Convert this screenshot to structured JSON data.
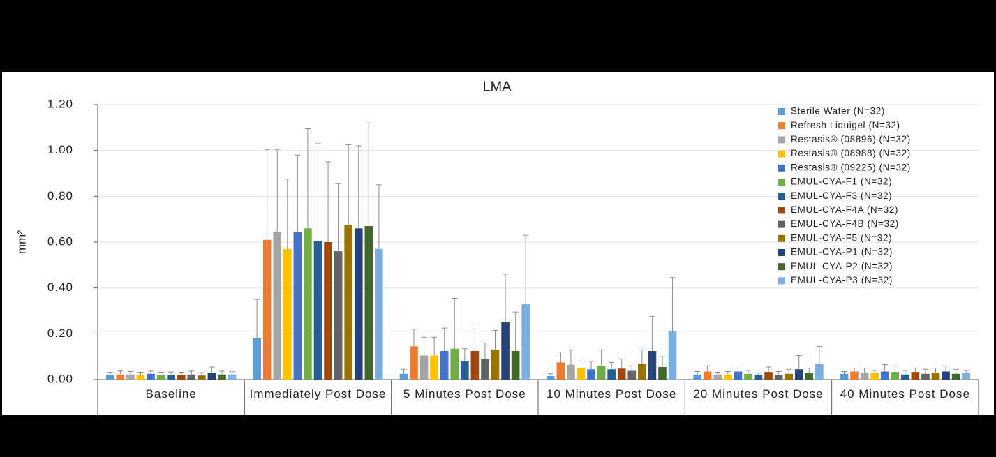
{
  "chart_data": {
    "type": "bar",
    "title": "LMA",
    "y_label": "mm²",
    "categories": [
      "Baseline",
      "Immediately Post Dose",
      "5 Minutes Post Dose",
      "10 Minutes Post Dose",
      "20 Minutes Post Dose",
      "40 Minutes Post Dose"
    ],
    "ylim": [
      0,
      1.2
    ],
    "yticks": [
      {
        "value": 0,
        "label": "0.00"
      },
      {
        "value": 0.2,
        "label": "0.20"
      },
      {
        "value": 0.4,
        "label": "0.40"
      },
      {
        "value": 0.6,
        "label": "0.60"
      },
      {
        "value": 0.8,
        "label": "0.80"
      },
      {
        "value": 1.0,
        "label": "1.00"
      },
      {
        "value": 1.2,
        "label": "1.20"
      }
    ],
    "grid": true,
    "legend": "top-right",
    "series": [
      {
        "name": "Sterile Water (N=32)",
        "color": "#5b9bd5",
        "values": [
          0.02,
          0.18,
          0.025,
          0.015,
          0.022,
          0.025
        ],
        "errors": [
          0.012,
          0.17,
          0.02,
          0.01,
          0.013,
          0.01
        ]
      },
      {
        "name": "Refresh Liquigel (N=32)",
        "color": "#ed7d31",
        "values": [
          0.022,
          0.61,
          0.145,
          0.075,
          0.035,
          0.035
        ],
        "errors": [
          0.015,
          0.395,
          0.075,
          0.045,
          0.025,
          0.015
        ]
      },
      {
        "name": "Restasis® (08896) (N=32)",
        "color": "#a5a5a5",
        "values": [
          0.022,
          0.645,
          0.105,
          0.065,
          0.022,
          0.03
        ],
        "errors": [
          0.013,
          0.36,
          0.08,
          0.065,
          0.01,
          0.02
        ]
      },
      {
        "name": "Restasis® (08988) (N=32)",
        "color": "#ffc000",
        "values": [
          0.02,
          0.57,
          0.105,
          0.05,
          0.022,
          0.028
        ],
        "errors": [
          0.012,
          0.305,
          0.08,
          0.04,
          0.013,
          0.012
        ]
      },
      {
        "name": "Restasis® (09225) (N=32)",
        "color": "#4472c4",
        "values": [
          0.025,
          0.645,
          0.125,
          0.045,
          0.035,
          0.035
        ],
        "errors": [
          0.012,
          0.335,
          0.1,
          0.035,
          0.015,
          0.03
        ]
      },
      {
        "name": "EMUL-CYA-F1 (N=32)",
        "color": "#70ad47",
        "values": [
          0.02,
          0.66,
          0.135,
          0.06,
          0.025,
          0.033
        ],
        "errors": [
          0.012,
          0.435,
          0.22,
          0.07,
          0.015,
          0.027
        ]
      },
      {
        "name": "EMUL-CYA-F3 (N=32)",
        "color": "#255e91",
        "values": [
          0.02,
          0.605,
          0.08,
          0.045,
          0.02,
          0.022
        ],
        "errors": [
          0.013,
          0.425,
          0.055,
          0.03,
          0.008,
          0.018
        ]
      },
      {
        "name": "EMUL-CYA-F4A (N=32)",
        "color": "#9e480e",
        "values": [
          0.02,
          0.6,
          0.125,
          0.048,
          0.033,
          0.033
        ],
        "errors": [
          0.012,
          0.35,
          0.105,
          0.042,
          0.022,
          0.017
        ]
      },
      {
        "name": "EMUL-CYA-F4B (N=32)",
        "color": "#636363",
        "values": [
          0.022,
          0.56,
          0.09,
          0.038,
          0.02,
          0.025
        ],
        "errors": [
          0.015,
          0.295,
          0.07,
          0.022,
          0.015,
          0.02
        ]
      },
      {
        "name": "EMUL-CYA-F5 (N=32)",
        "color": "#997300",
        "values": [
          0.018,
          0.675,
          0.13,
          0.068,
          0.025,
          0.03
        ],
        "errors": [
          0.012,
          0.35,
          0.085,
          0.062,
          0.02,
          0.02
        ]
      },
      {
        "name": "EMUL-CYA-P1 (N=32)",
        "color": "#264478",
        "values": [
          0.03,
          0.66,
          0.25,
          0.125,
          0.045,
          0.035
        ],
        "errors": [
          0.025,
          0.36,
          0.21,
          0.15,
          0.06,
          0.025
        ]
      },
      {
        "name": "EMUL-CYA-P2 (N=32)",
        "color": "#43682b",
        "values": [
          0.022,
          0.67,
          0.125,
          0.055,
          0.03,
          0.025
        ],
        "errors": [
          0.015,
          0.45,
          0.17,
          0.045,
          0.02,
          0.02
        ]
      },
      {
        "name": "EMUL-CYA-P3 (N=32)",
        "color": "#7cafdd",
        "values": [
          0.022,
          0.57,
          0.33,
          0.21,
          0.068,
          0.028
        ],
        "errors": [
          0.012,
          0.28,
          0.3,
          0.235,
          0.077,
          0.012
        ]
      }
    ]
  }
}
